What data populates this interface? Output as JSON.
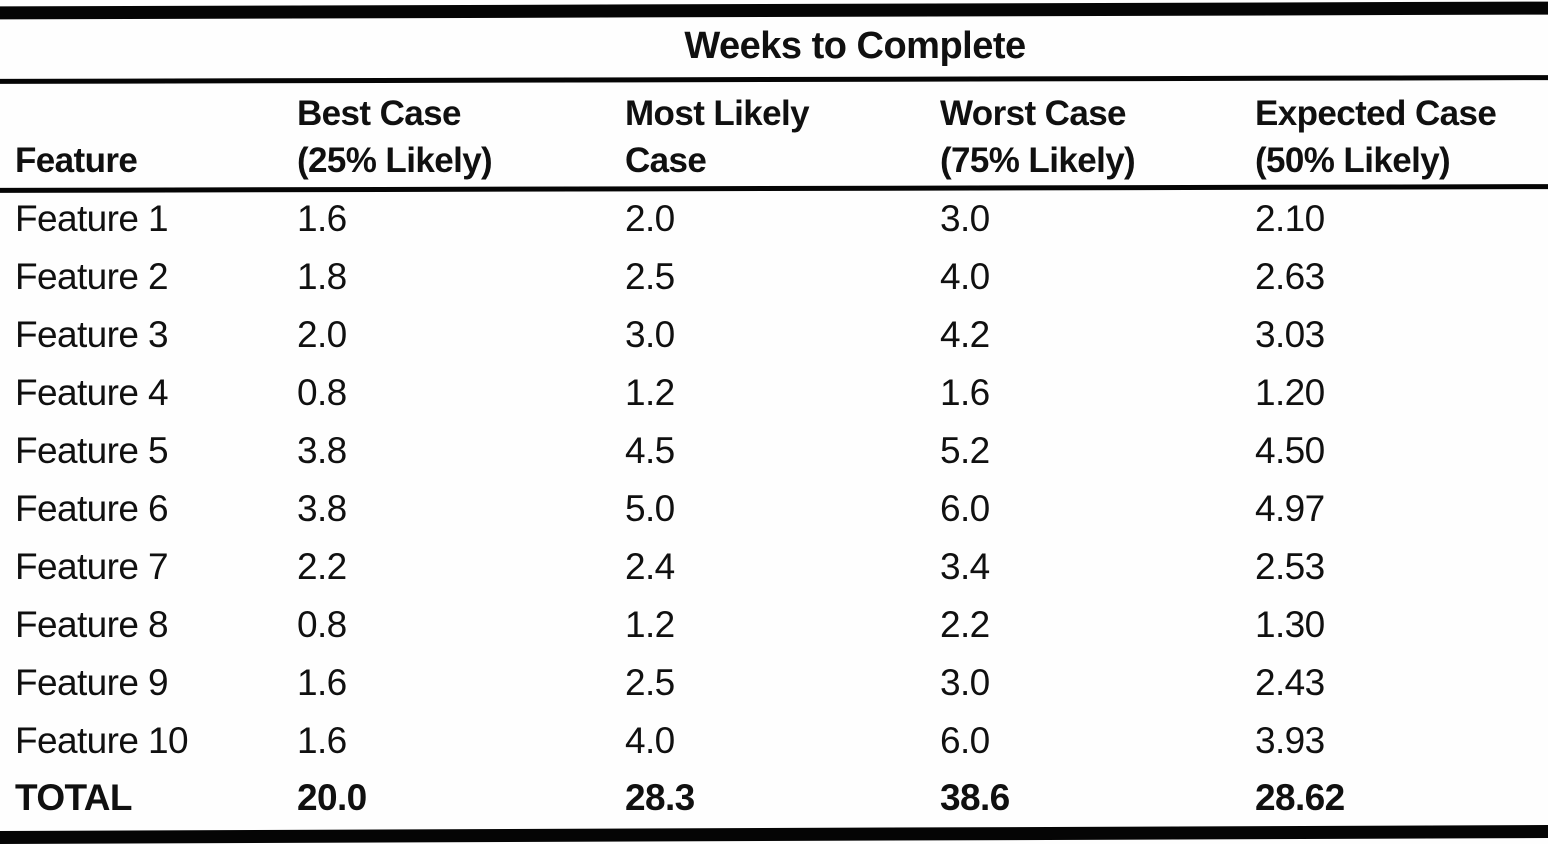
{
  "chart_data": {
    "type": "table",
    "title": "Weeks to Complete",
    "columns": [
      {
        "label": "Feature",
        "line1": "Feature",
        "line2": ""
      },
      {
        "label": "Best Case (25% Likely)",
        "line1": "Best Case",
        "line2": "(25% Likely)"
      },
      {
        "label": "Most Likely Case",
        "line1": "Most Likely",
        "line2": "Case"
      },
      {
        "label": "Worst Case (75% Likely)",
        "line1": "Worst Case",
        "line2": "(75% Likely)"
      },
      {
        "label": "Expected Case (50% Likely)",
        "line1": "Expected Case",
        "line2": "(50% Likely)"
      }
    ],
    "rows": [
      {
        "feature": "Feature 1",
        "best_case": "1.6",
        "most_likely": "2.0",
        "worst_case": "3.0",
        "expected_case": "2.10"
      },
      {
        "feature": "Feature 2",
        "best_case": "1.8",
        "most_likely": "2.5",
        "worst_case": "4.0",
        "expected_case": "2.63"
      },
      {
        "feature": "Feature 3",
        "best_case": "2.0",
        "most_likely": "3.0",
        "worst_case": "4.2",
        "expected_case": "3.03"
      },
      {
        "feature": "Feature 4",
        "best_case": "0.8",
        "most_likely": "1.2",
        "worst_case": "1.6",
        "expected_case": "1.20"
      },
      {
        "feature": "Feature 5",
        "best_case": "3.8",
        "most_likely": "4.5",
        "worst_case": "5.2",
        "expected_case": "4.50"
      },
      {
        "feature": "Feature 6",
        "best_case": "3.8",
        "most_likely": "5.0",
        "worst_case": "6.0",
        "expected_case": "4.97"
      },
      {
        "feature": "Feature 7",
        "best_case": "2.2",
        "most_likely": "2.4",
        "worst_case": "3.4",
        "expected_case": "2.53"
      },
      {
        "feature": "Feature 8",
        "best_case": "0.8",
        "most_likely": "1.2",
        "worst_case": "2.2",
        "expected_case": "1.30"
      },
      {
        "feature": "Feature 9",
        "best_case": "1.6",
        "most_likely": "2.5",
        "worst_case": "3.0",
        "expected_case": "2.43"
      },
      {
        "feature": "Feature 10",
        "best_case": "1.6",
        "most_likely": "4.0",
        "worst_case": "6.0",
        "expected_case": "3.93"
      }
    ],
    "total_row": {
      "feature": "TOTAL",
      "best_case": "20.0",
      "most_likely": "28.3",
      "worst_case": "38.6",
      "expected_case": "28.62"
    },
    "colors": {
      "ink": "#101010",
      "rule": "#050505",
      "paper": "#fefefe"
    }
  }
}
